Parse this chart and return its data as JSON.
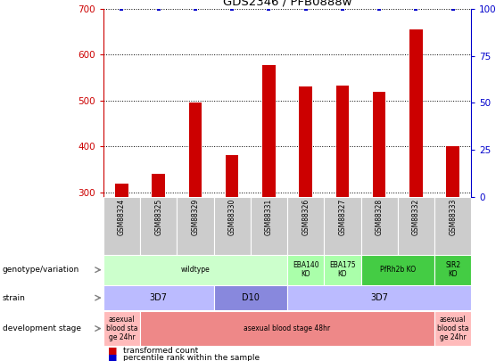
{
  "title": "GDS2346 / PFB0888w",
  "samples": [
    "GSM88324",
    "GSM88325",
    "GSM88329",
    "GSM88330",
    "GSM88331",
    "GSM88326",
    "GSM88327",
    "GSM88328",
    "GSM88332",
    "GSM88333"
  ],
  "transformed_counts": [
    318,
    340,
    495,
    380,
    578,
    530,
    532,
    520,
    655,
    400
  ],
  "percentile_ranks": [
    100,
    100,
    100,
    100,
    100,
    100,
    100,
    100,
    100,
    100
  ],
  "ylim_left": [
    290,
    700
  ],
  "ylim_right": [
    0,
    100
  ],
  "yticks_left": [
    300,
    400,
    500,
    600,
    700
  ],
  "yticks_right": [
    0,
    25,
    50,
    75,
    100
  ],
  "gv_segments": [
    [
      0,
      4,
      "#ccffcc",
      "wildtype"
    ],
    [
      5,
      5,
      "#aaffaa",
      "EBA140\nKO"
    ],
    [
      6,
      6,
      "#aaffaa",
      "EBA175\nKO"
    ],
    [
      7,
      8,
      "#44cc44",
      "PfRh2b KO"
    ],
    [
      9,
      9,
      "#44cc44",
      "SIR2\nKO"
    ]
  ],
  "strain_segments": [
    [
      0,
      2,
      "#bbbbff",
      "3D7"
    ],
    [
      3,
      4,
      "#8888dd",
      "D10"
    ],
    [
      5,
      9,
      "#bbbbff",
      "3D7"
    ]
  ],
  "dev_segments": [
    [
      0,
      0,
      "#ffbbbb",
      "asexual\nblood sta\nge 24hr"
    ],
    [
      1,
      8,
      "#ee8888",
      "asexual blood stage 48hr"
    ],
    [
      9,
      9,
      "#ffbbbb",
      "asexual\nblood sta\nge 24hr"
    ]
  ],
  "bar_color": "#cc0000",
  "dot_color": "#0000cc",
  "axis_color_left": "#cc0000",
  "axis_color_right": "#0000cc",
  "sample_bg_color": "#cccccc"
}
